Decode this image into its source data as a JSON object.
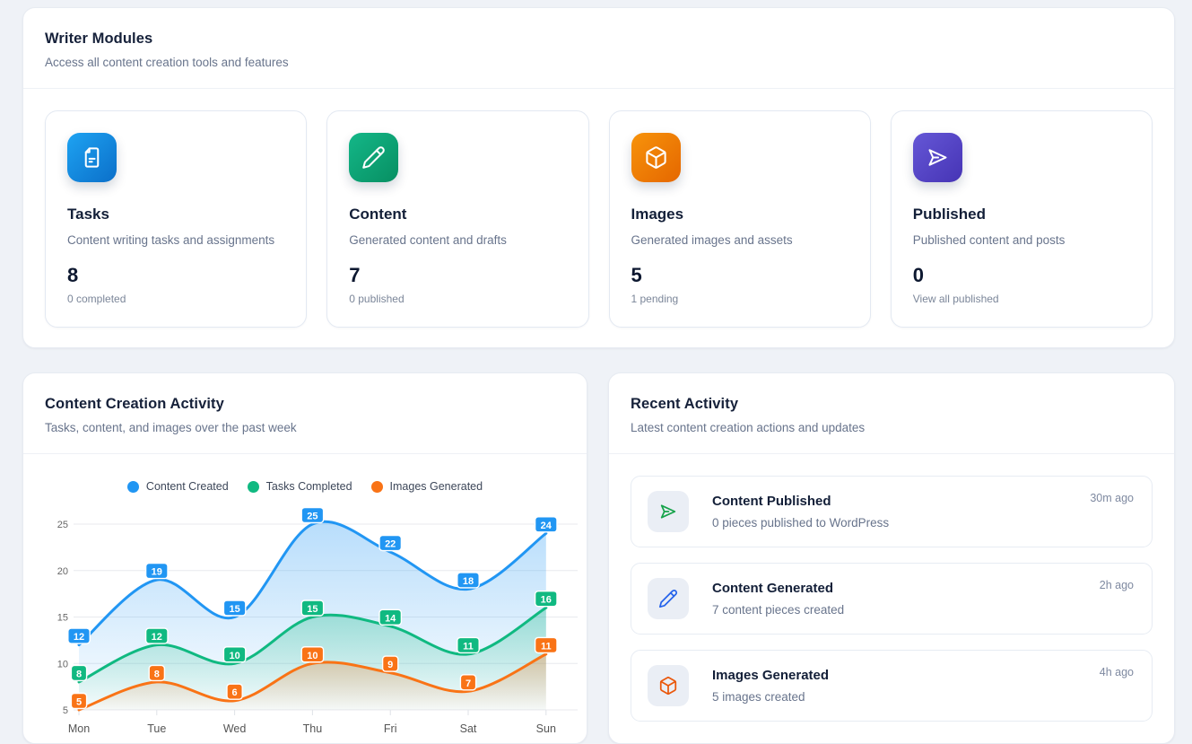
{
  "theme": {
    "page_bg": "#eff2f7",
    "card_bg": "#ffffff",
    "card_border": "#e7ebf2",
    "title_color": "#16213a",
    "muted_color": "#68748c"
  },
  "writer_modules": {
    "title": "Writer Modules",
    "subtitle": "Access all content creation tools and features",
    "cards": [
      {
        "title": "Tasks",
        "description": "Content writing tasks and assignments",
        "value": "8",
        "caption": "0 completed",
        "icon": "file-text-icon",
        "gradient": [
          "#1ea3f2",
          "#0b6fc9"
        ]
      },
      {
        "title": "Content",
        "description": "Generated content and drafts",
        "value": "7",
        "caption": "0 published",
        "icon": "pencil-icon",
        "gradient": [
          "#14b788",
          "#078f62"
        ]
      },
      {
        "title": "Images",
        "description": "Generated images and assets",
        "value": "5",
        "caption": "1 pending",
        "icon": "box-icon",
        "gradient": [
          "#f7930b",
          "#e56700"
        ]
      },
      {
        "title": "Published",
        "description": "Published content and posts",
        "value": "0",
        "caption": "View all published",
        "icon": "send-icon",
        "gradient": [
          "#6557d6",
          "#4634b5"
        ]
      }
    ]
  },
  "activity_chart": {
    "title": "Content Creation Activity",
    "subtitle": "Tasks, content, and images over the past week",
    "chart_data": {
      "type": "line",
      "categories": [
        "Mon",
        "Tue",
        "Wed",
        "Thu",
        "Fri",
        "Sat",
        "Sun"
      ],
      "series": [
        {
          "name": "Content Created",
          "color": "#2196f3",
          "values": [
            12,
            19,
            15,
            25,
            22,
            18,
            24
          ]
        },
        {
          "name": "Tasks Completed",
          "color": "#10b981",
          "values": [
            8,
            12,
            10,
            15,
            14,
            11,
            16
          ]
        },
        {
          "name": "Images Generated",
          "color": "#f97316",
          "values": [
            5,
            8,
            6,
            10,
            9,
            7,
            11
          ]
        }
      ],
      "ylim": [
        5,
        25
      ],
      "yticks": [
        5,
        10,
        15,
        20,
        25
      ],
      "grid": true,
      "legend_position": "top",
      "area_fill": true,
      "point_labels": true,
      "axis_text_color": "#666666",
      "grid_color": "#e8eaee"
    }
  },
  "recent_activity": {
    "title": "Recent Activity",
    "subtitle": "Latest content creation actions and updates",
    "items": [
      {
        "title": "Content Published",
        "description": "0 pieces published to WordPress",
        "time": "30m ago",
        "icon": "send-icon",
        "color": "#16a34a"
      },
      {
        "title": "Content Generated",
        "description": "7 content pieces created",
        "time": "2h ago",
        "icon": "pencil-icon",
        "color": "#2563eb"
      },
      {
        "title": "Images Generated",
        "description": "5 images created",
        "time": "4h ago",
        "icon": "box-icon",
        "color": "#ea580c"
      }
    ]
  }
}
